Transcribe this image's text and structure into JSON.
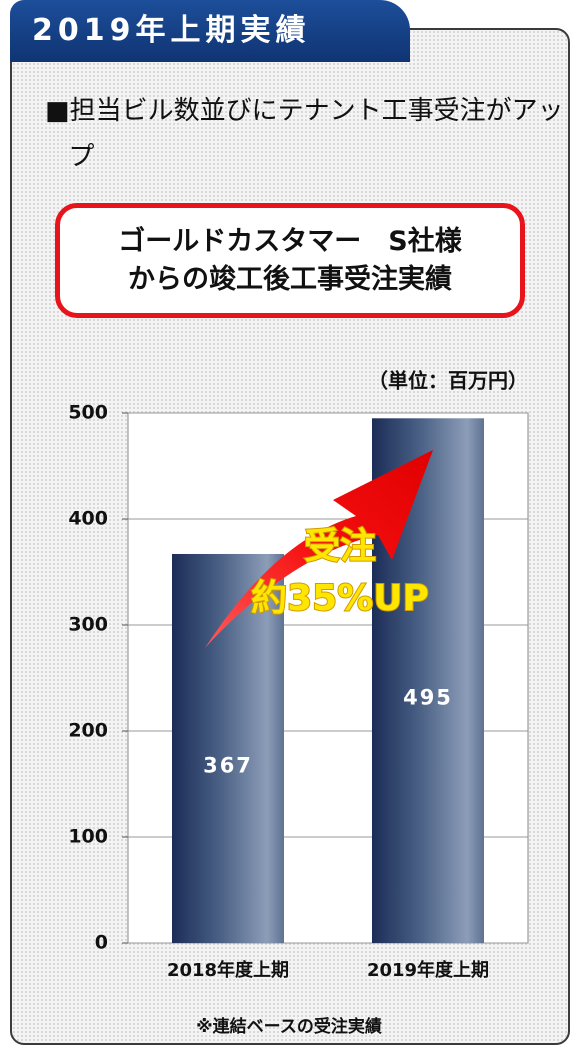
{
  "header": {
    "title": "2019年上期実績"
  },
  "bullet": "■担当ビル数並びにテナント工事受注がアップ",
  "callout": {
    "lines": [
      "ゴールドカスタマー　S社様",
      "からの竣工後工事受注実績"
    ]
  },
  "chart_data": {
    "type": "bar",
    "unit_label": "（単位：百万円）",
    "categories": [
      "2018年度上期",
      "2019年度上期"
    ],
    "values": [
      367,
      495
    ],
    "ylim": [
      0,
      500
    ],
    "yticks": [
      0,
      100,
      200,
      300,
      400,
      500
    ],
    "grid": true,
    "annotation": [
      "受注",
      "約35%UP"
    ]
  },
  "footnote": "※連結ベースの受注実績"
}
